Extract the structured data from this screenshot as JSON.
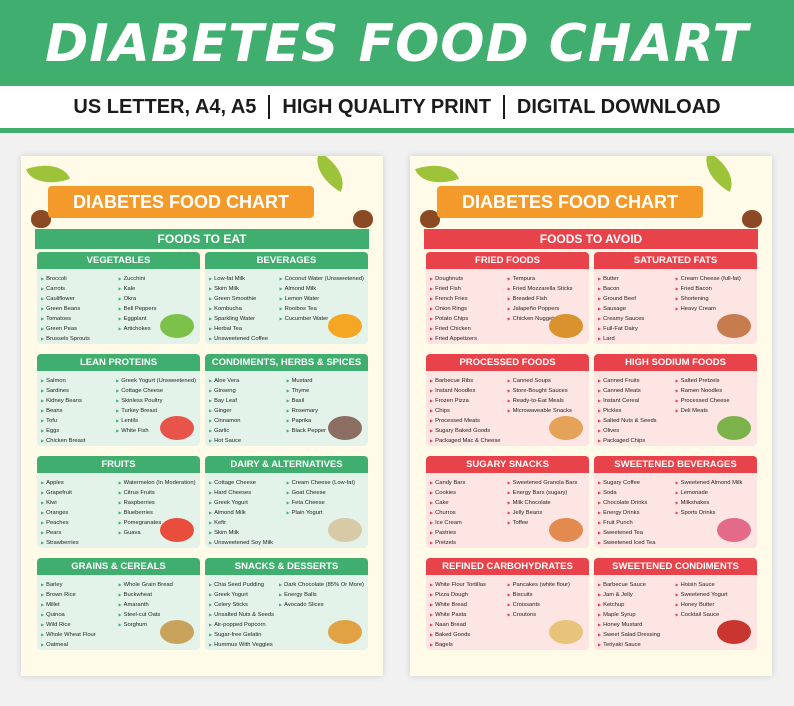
{
  "banner": {
    "title": "DIABETES FOOD CHART",
    "subtitle_parts": [
      "US LETTER, A4, A5",
      "HIGH QUALITY PRINT",
      "DIGITAL DOWNLOAD"
    ],
    "color": "#3fae6e"
  },
  "left_page": {
    "ribbon": "DIABETES FOOD CHART",
    "section": "FOODS TO EAT",
    "panels": [
      {
        "title": "VEGETABLES",
        "col1": [
          "Broccoli",
          "Carrots",
          "Cauliflower",
          "Green Beans",
          "Tomatoes",
          "Green Peas",
          "Brussels Sprouts"
        ],
        "col2": [
          "Zucchini",
          "Kale",
          "Okra",
          "Bell Peppers",
          "Eggplant",
          "Artichokes"
        ]
      },
      {
        "title": "BEVERAGES",
        "col1": [
          "Low-fat Milk",
          "Skim Milk",
          "Green Smoothie",
          "Kombucha",
          "Sparkling Water",
          "Herbal Tea",
          "Unsweetened Coffee"
        ],
        "col2": [
          "Coconut Water (Unsweetened)",
          "Almond Milk",
          "Lemon Water",
          "Rooibos Tea",
          "Cucumber Water"
        ]
      },
      {
        "title": "LEAN PROTEINS",
        "col1": [
          "Salmon",
          "Sardines",
          "Kidney Beans",
          "Beans",
          "Tofu",
          "Eggs",
          "Chicken Breast"
        ],
        "col2": [
          "Greek Yogurt (Unsweetened)",
          "Cottage Cheese",
          "Skinless Poultry",
          "Turkey Breast",
          "Lentils",
          "White Fish"
        ]
      },
      {
        "title": "CONDIMENTS, HERBS & SPICES",
        "col1": [
          "Aloe Vera",
          "Ginseng",
          "Bay Leaf",
          "Ginger",
          "Cinnamon",
          "Garlic",
          "Hot Sauce"
        ],
        "col2": [
          "Mustard",
          "Thyme",
          "Basil",
          "Rosemary",
          "Paprika",
          "Black Pepper"
        ]
      },
      {
        "title": "FRUITS",
        "col1": [
          "Apples",
          "Grapefruit",
          "Kiwi",
          "Oranges",
          "Peaches",
          "Pears",
          "Strawberries"
        ],
        "col2": [
          "Watermelon (In Moderation)",
          "Citrus Fruits",
          "Raspberries",
          "Blueberries",
          "Pomegranates",
          "Guava"
        ]
      },
      {
        "title": "DAIRY & ALTERNATIVES",
        "col1": [
          "Cottage Cheese",
          "Hard Cheeses",
          "Greek Yogurt",
          "Almond Milk",
          "Kefir",
          "Skim Milk",
          "Unsweetened Soy Milk"
        ],
        "col2": [
          "Cream Cheese (Low-fat)",
          "Goat Cheese",
          "Feta Cheese",
          "Plain Yogurt"
        ]
      },
      {
        "title": "GRAINS & CEREALS",
        "col1": [
          "Barley",
          "Brown Rice",
          "Millet",
          "Quinoa",
          "Wild Rice",
          "Whole Wheat Flour",
          "Oatmeal"
        ],
        "col2": [
          "Whole Grain Bread",
          "Buckwheat",
          "Amaranth",
          "Steel-cut Oats",
          "Sorghum"
        ]
      },
      {
        "title": "SNACKS & DESSERTS",
        "col1": [
          "Chia Seed Pudding",
          "Greek Yogurt",
          "Celery Sticks",
          "Unsalted Nuts & Seeds",
          "Air-popped Popcorn",
          "Sugar-free Gelatin",
          "Hummus With Veggies"
        ],
        "col2": [
          "Dark Chocolate (85% Or More)",
          "Energy Balls",
          "Avocado Slices"
        ]
      }
    ]
  },
  "right_page": {
    "ribbon": "DIABETES FOOD CHART",
    "section": "FOODS TO AVOID",
    "panels": [
      {
        "title": "FRIED FOODS",
        "col1": [
          "Doughnuts",
          "Fried Fish",
          "French Fries",
          "Onion Rings",
          "Potato Chips",
          "Fried Chicken",
          "Fried Appetizers"
        ],
        "col2": [
          "Tempura",
          "Fried Mozzarella Sticks",
          "Breaded Fish",
          "Jalapeño Poppers",
          "Chicken Nuggets"
        ]
      },
      {
        "title": "SATURATED FATS",
        "col1": [
          "Butter",
          "Bacon",
          "Ground Beef",
          "Sausage",
          "Creamy Sauces",
          "Full-Fat Dairy",
          "Lard"
        ],
        "col2": [
          "Cream Cheese (full-fat)",
          "Fried Bacon",
          "Shortening",
          "Heavy Cream"
        ]
      },
      {
        "title": "PROCESSED FOODS",
        "col1": [
          "Barbecue Ribs",
          "Instant Noodles",
          "Frozen Pizza",
          "Chips",
          "Processed Meats",
          "Sugary Baked Goods",
          "Packaged Mac & Cheese"
        ],
        "col2": [
          "Canned Soups",
          "Store-Bought Sauces",
          "Ready-to-Eat Meals",
          "Microwaveable Snacks"
        ]
      },
      {
        "title": "HIGH SODIUM FOODS",
        "col1": [
          "Canned Fruits",
          "Canned Meats",
          "Instant Cereal",
          "Pickles",
          "Salted Nuts & Seeds",
          "Olives",
          "Packaged Chips"
        ],
        "col2": [
          "Salted Pretzels",
          "Ramen Noodles",
          "Processed Cheese",
          "Deli Meats"
        ]
      },
      {
        "title": "SUGARY SNACKS",
        "col1": [
          "Candy Bars",
          "Cookies",
          "Cake",
          "Churros",
          "Ice Cream",
          "Pastries",
          "Pretzels"
        ],
        "col2": [
          "Sweetened Granola Bars",
          "Energy Bars (sugary)",
          "Milk Chocolate",
          "Jelly Beans",
          "Toffee"
        ]
      },
      {
        "title": "SWEETENED BEVERAGES",
        "col1": [
          "Sugary Coffee",
          "Soda",
          "Chocolate Drinks",
          "Energy Drinks",
          "Fruit Punch",
          "Sweetened Tea",
          "Sweetened Iced Tea"
        ],
        "col2": [
          "Sweetened Almond Milk",
          "Lemonade",
          "Milkshakes",
          "Sports Drinks"
        ]
      },
      {
        "title": "REFINED CARBOHYDRATES",
        "col1": [
          "White Flour Tortillas",
          "Pizza Dough",
          "White Bread",
          "White Pasta",
          "Naan Bread",
          "Baked Goods",
          "Bagels"
        ],
        "col2": [
          "Pancakes (white flour)",
          "Biscuits",
          "Croissants",
          "Croutons"
        ]
      },
      {
        "title": "SWEETENED CONDIMENTS",
        "col1": [
          "Barbecue Sauce",
          "Jam & Jelly",
          "Ketchup",
          "Maple Syrup",
          "Honey Mustard",
          "Sweet Salad Dressing",
          "Teriyaki Sauce"
        ],
        "col2": [
          "Hoisin Sauce",
          "Sweetened Yogurt",
          "Honey Butter",
          "Cocktail Sauce"
        ]
      }
    ]
  }
}
